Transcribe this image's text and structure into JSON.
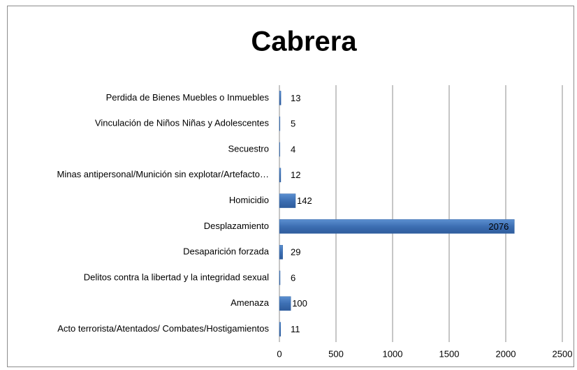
{
  "chart_data": {
    "type": "barh",
    "title": "Cabrera",
    "categories": [
      "Perdida de Bienes Muebles o Inmuebles",
      "Vinculación de Niños Niñas y Adolescentes",
      "Secuestro",
      "Minas antipersonal/Munición sin explotar/Artefacto…",
      "Homicidio",
      "Desplazamiento",
      "Desaparición forzada",
      "Delitos contra la libertad y la integridad sexual",
      "Amenaza",
      "Acto terrorista/Atentados/ Combates/Hostigamientos"
    ],
    "values": [
      13,
      5,
      4,
      12,
      142,
      2076,
      29,
      6,
      100,
      11
    ],
    "color": "#4a7ebb",
    "xlim": [
      0,
      2500
    ],
    "xticks": [
      0,
      500,
      1000,
      1500,
      2000,
      2500
    ],
    "grid": true
  }
}
